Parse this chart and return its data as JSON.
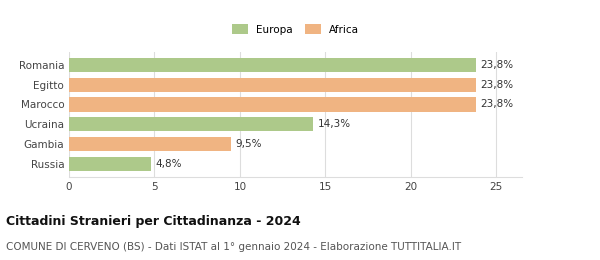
{
  "categories": [
    "Romania",
    "Egitto",
    "Marocco",
    "Ucraina",
    "Gambia",
    "Russia"
  ],
  "values": [
    23.8,
    23.8,
    23.8,
    14.3,
    9.5,
    4.8
  ],
  "colors": [
    "#adc98a",
    "#f0b482",
    "#f0b482",
    "#adc98a",
    "#f0b482",
    "#adc98a"
  ],
  "labels": [
    "23,8%",
    "23,8%",
    "23,8%",
    "14,3%",
    "9,5%",
    "4,8%"
  ],
  "legend_labels": [
    "Europa",
    "Africa"
  ],
  "legend_colors": [
    "#adc98a",
    "#f0b482"
  ],
  "title": "Cittadini Stranieri per Cittadinanza - 2024",
  "subtitle": "COMUNE DI CERVENO (BS) - Dati ISTAT al 1° gennaio 2024 - Elaborazione TUTTITALIA.IT",
  "xlim": [
    0,
    26.5
  ],
  "xticks": [
    0,
    5,
    10,
    15,
    20,
    25
  ],
  "background_color": "#ffffff",
  "grid_color": "#dddddd",
  "title_fontsize": 9,
  "subtitle_fontsize": 7.5,
  "label_fontsize": 7.5,
  "tick_fontsize": 7.5,
  "bar_height": 0.72
}
